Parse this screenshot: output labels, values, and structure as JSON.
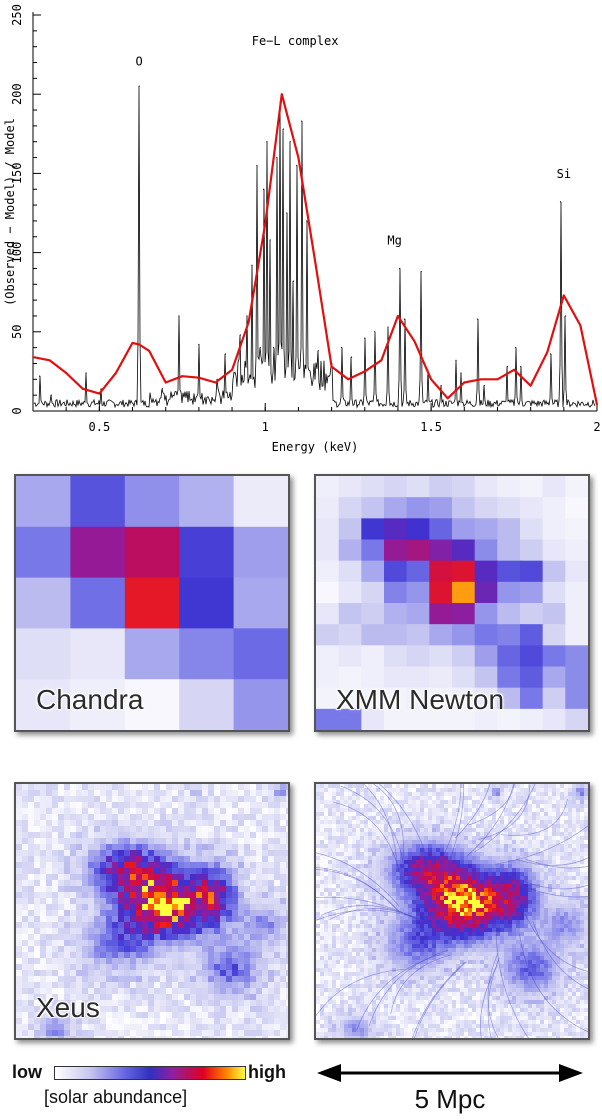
{
  "chart_data": {
    "type": "line",
    "xlabel": "Energy (keV)",
    "ylabel": "(Observed − Model) / Model",
    "xlim": [
      0.3,
      2.0
    ],
    "ylim": [
      0,
      250
    ],
    "xticks": [
      0.5,
      1,
      1.5,
      2
    ],
    "xtick_labels": [
      "0.5",
      "1",
      "1.5",
      "2"
    ],
    "yticks": [
      0,
      50,
      100,
      150,
      200,
      250
    ],
    "ytick_labels": [
      "0",
      "50",
      "100",
      "150",
      "200",
      "250"
    ],
    "annotations": [
      {
        "text": "O",
        "x": 0.62,
        "y": 218
      },
      {
        "text": "Fe−L complex",
        "x": 1.09,
        "y": 231
      },
      {
        "text": "Mg",
        "x": 1.39,
        "y": 105
      },
      {
        "text": "Si",
        "x": 1.9,
        "y": 147
      }
    ],
    "series": [
      {
        "style": "smooth",
        "color": "#e01010",
        "x": [
          0.3,
          0.35,
          0.4,
          0.45,
          0.5,
          0.55,
          0.6,
          0.62,
          0.65,
          0.7,
          0.75,
          0.8,
          0.85,
          0.9,
          0.95,
          1.0,
          1.05,
          1.1,
          1.15,
          1.2,
          1.25,
          1.3,
          1.35,
          1.4,
          1.45,
          1.5,
          1.55,
          1.6,
          1.65,
          1.7,
          1.75,
          1.8,
          1.85,
          1.9,
          1.95,
          2.0
        ],
        "y": [
          34,
          32,
          24,
          14,
          11,
          24,
          43,
          42,
          38,
          18,
          22,
          21,
          18,
          26,
          56,
          118,
          200,
          160,
          95,
          28,
          20,
          25,
          32,
          60,
          44,
          20,
          8,
          18,
          20,
          20,
          26,
          16,
          37,
          73,
          54,
          4
        ]
      },
      {
        "style": "spiky",
        "color": "#000000",
        "baseline": 6,
        "peaks": [
          {
            "x": 0.32,
            "y": 22
          },
          {
            "x": 0.355,
            "y": 10
          },
          {
            "x": 0.46,
            "y": 24
          },
          {
            "x": 0.505,
            "y": 14
          },
          {
            "x": 0.62,
            "y": 205
          },
          {
            "x": 0.69,
            "y": 14
          },
          {
            "x": 0.74,
            "y": 60
          },
          {
            "x": 0.8,
            "y": 42
          },
          {
            "x": 0.855,
            "y": 20
          },
          {
            "x": 0.88,
            "y": 36
          },
          {
            "x": 0.905,
            "y": 24
          },
          {
            "x": 0.925,
            "y": 48
          },
          {
            "x": 0.945,
            "y": 60
          },
          {
            "x": 0.96,
            "y": 92
          },
          {
            "x": 0.975,
            "y": 155
          },
          {
            "x": 0.985,
            "y": 40
          },
          {
            "x": 0.995,
            "y": 140
          },
          {
            "x": 1.005,
            "y": 170
          },
          {
            "x": 1.015,
            "y": 108
          },
          {
            "x": 1.025,
            "y": 40
          },
          {
            "x": 1.035,
            "y": 160
          },
          {
            "x": 1.045,
            "y": 195
          },
          {
            "x": 1.055,
            "y": 178
          },
          {
            "x": 1.065,
            "y": 125
          },
          {
            "x": 1.075,
            "y": 170
          },
          {
            "x": 1.085,
            "y": 82
          },
          {
            "x": 1.095,
            "y": 155
          },
          {
            "x": 1.11,
            "y": 183
          },
          {
            "x": 1.125,
            "y": 120
          },
          {
            "x": 1.16,
            "y": 38
          },
          {
            "x": 1.2,
            "y": 30
          },
          {
            "x": 1.23,
            "y": 40
          },
          {
            "x": 1.26,
            "y": 34
          },
          {
            "x": 1.3,
            "y": 46
          },
          {
            "x": 1.33,
            "y": 50
          },
          {
            "x": 1.37,
            "y": 53
          },
          {
            "x": 1.405,
            "y": 90
          },
          {
            "x": 1.42,
            "y": 58
          },
          {
            "x": 1.47,
            "y": 88
          },
          {
            "x": 1.49,
            "y": 26
          },
          {
            "x": 1.53,
            "y": 16
          },
          {
            "x": 1.575,
            "y": 32
          },
          {
            "x": 1.59,
            "y": 24
          },
          {
            "x": 1.64,
            "y": 58
          },
          {
            "x": 1.66,
            "y": 16
          },
          {
            "x": 1.73,
            "y": 28
          },
          {
            "x": 1.755,
            "y": 40
          },
          {
            "x": 1.77,
            "y": 28
          },
          {
            "x": 1.86,
            "y": 36
          },
          {
            "x": 1.89,
            "y": 132
          },
          {
            "x": 1.905,
            "y": 60
          }
        ]
      }
    ]
  },
  "panels": [
    {
      "label": "Chandra"
    },
    {
      "label": "XMM Newton"
    },
    {
      "label": "Xeus"
    },
    {
      "label": ""
    }
  ],
  "colorbar": {
    "low": "low",
    "high": "high",
    "caption": "[solar abundance]"
  },
  "scalebar": {
    "label": "5 Mpc"
  },
  "chandra_grid": [
    [
      0.2,
      0.38,
      0.25,
      0.18,
      0.05
    ],
    [
      0.3,
      0.62,
      0.72,
      0.42,
      0.22
    ],
    [
      0.16,
      0.32,
      0.82,
      0.44,
      0.2
    ],
    [
      0.08,
      0.06,
      0.2,
      0.27,
      0.33
    ],
    [
      0.06,
      0.04,
      0.02,
      0.1,
      0.24
    ]
  ],
  "xmm_grid": [
    [
      0.04,
      0.06,
      0.08,
      0.1,
      0.08,
      0.12,
      0.1,
      0.06,
      0.04,
      0.03,
      0.06,
      0.03
    ],
    [
      0.05,
      0.1,
      0.14,
      0.2,
      0.24,
      0.22,
      0.14,
      0.1,
      0.08,
      0.06,
      0.04,
      0.02
    ],
    [
      0.06,
      0.14,
      0.44,
      0.5,
      0.46,
      0.34,
      0.22,
      0.2,
      0.16,
      0.08,
      0.04,
      0.03
    ],
    [
      0.06,
      0.18,
      0.3,
      0.62,
      0.66,
      0.58,
      0.5,
      0.26,
      0.16,
      0.12,
      0.06,
      0.04
    ],
    [
      0.04,
      0.08,
      0.2,
      0.4,
      0.34,
      0.78,
      0.8,
      0.5,
      0.38,
      0.4,
      0.14,
      0.06
    ],
    [
      0.02,
      0.06,
      0.1,
      0.28,
      0.24,
      0.8,
      0.94,
      0.54,
      0.24,
      0.22,
      0.08,
      0.04
    ],
    [
      0.06,
      0.14,
      0.12,
      0.18,
      0.2,
      0.62,
      0.6,
      0.24,
      0.16,
      0.12,
      0.14,
      0.04
    ],
    [
      0.12,
      0.1,
      0.16,
      0.16,
      0.14,
      0.2,
      0.24,
      0.3,
      0.28,
      0.36,
      0.1,
      0.04
    ],
    [
      0.04,
      0.06,
      0.04,
      0.08,
      0.1,
      0.08,
      0.12,
      0.22,
      0.34,
      0.4,
      0.3,
      0.26
    ],
    [
      0.04,
      0.03,
      0.04,
      0.06,
      0.06,
      0.05,
      0.08,
      0.14,
      0.3,
      0.36,
      0.2,
      0.26
    ],
    [
      0.03,
      0.03,
      0.03,
      0.03,
      0.04,
      0.03,
      0.04,
      0.06,
      0.16,
      0.3,
      0.12,
      0.26
    ],
    [
      0.3,
      0.3,
      0.06,
      0.03,
      0.03,
      0.03,
      0.03,
      0.04,
      0.03,
      0.04,
      0.06,
      0.1
    ]
  ]
}
